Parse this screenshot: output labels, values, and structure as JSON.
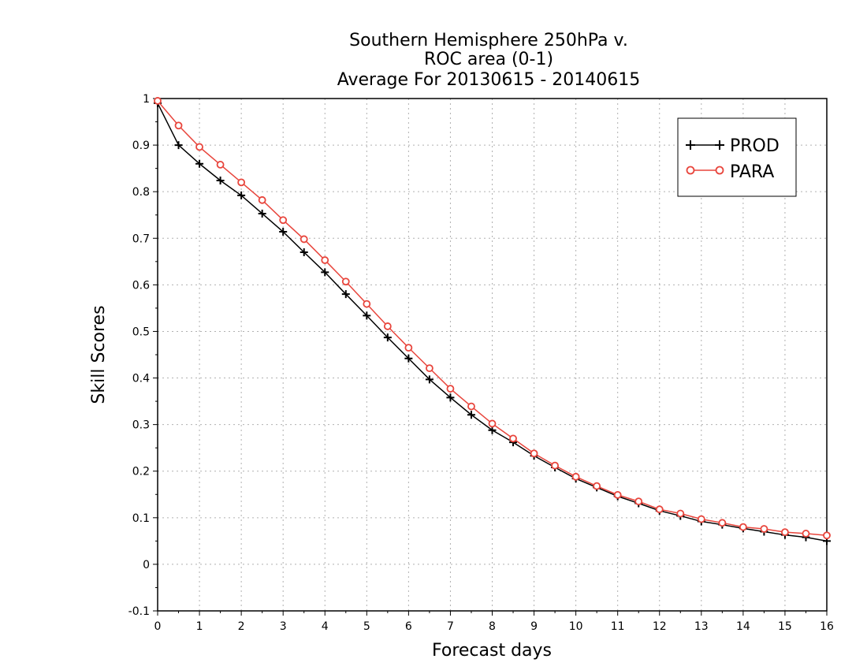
{
  "chart_data": {
    "type": "line",
    "title": [
      "Southern Hemisphere 250hPa v.",
      "ROC area (0-1)",
      "Average For 20130615 - 20140615"
    ],
    "xlabel": "Forecast days",
    "ylabel": "Skill Scores",
    "xlim": [
      0,
      16
    ],
    "ylim": [
      -0.1,
      1
    ],
    "xticks": [
      0,
      1,
      2,
      3,
      4,
      5,
      6,
      7,
      8,
      9,
      10,
      11,
      12,
      13,
      14,
      15,
      16
    ],
    "yticks": [
      -0.1,
      0,
      0.1,
      0.2,
      0.3,
      0.4,
      0.5,
      0.6,
      0.7,
      0.8,
      0.9,
      1
    ],
    "ytick_labels": [
      "-0.1",
      "0",
      "0.1",
      "0.2",
      "0.3",
      "0.4",
      "0.5",
      "0.6",
      "0.7",
      "0.8",
      "0.9",
      "1"
    ],
    "grid": true,
    "legend_position": "top-right",
    "x": [
      0,
      0.5,
      1,
      1.5,
      2,
      2.5,
      3,
      3.5,
      4,
      4.5,
      5,
      5.5,
      6,
      6.5,
      7,
      7.5,
      8,
      8.5,
      9,
      9.5,
      10,
      10.5,
      11,
      11.5,
      12,
      12.5,
      13,
      13.5,
      14,
      14.5,
      15,
      15.5,
      16
    ],
    "series": [
      {
        "name": "PROD",
        "color": "#000000",
        "marker": "plus",
        "values": [
          0.99,
          0.9,
          0.86,
          0.824,
          0.792,
          0.753,
          0.714,
          0.67,
          0.627,
          0.58,
          0.534,
          0.487,
          0.442,
          0.397,
          0.358,
          0.321,
          0.288,
          0.262,
          0.233,
          0.208,
          0.184,
          0.165,
          0.146,
          0.131,
          0.115,
          0.104,
          0.092,
          0.085,
          0.077,
          0.07,
          0.063,
          0.058,
          0.05
        ]
      },
      {
        "name": "PARA",
        "color": "#e8453c",
        "marker": "circle",
        "values": [
          0.995,
          0.942,
          0.896,
          0.858,
          0.82,
          0.782,
          0.739,
          0.698,
          0.653,
          0.607,
          0.559,
          0.511,
          0.465,
          0.421,
          0.377,
          0.339,
          0.302,
          0.27,
          0.238,
          0.212,
          0.188,
          0.168,
          0.149,
          0.135,
          0.118,
          0.109,
          0.097,
          0.089,
          0.08,
          0.076,
          0.069,
          0.066,
          0.062
        ]
      }
    ]
  }
}
